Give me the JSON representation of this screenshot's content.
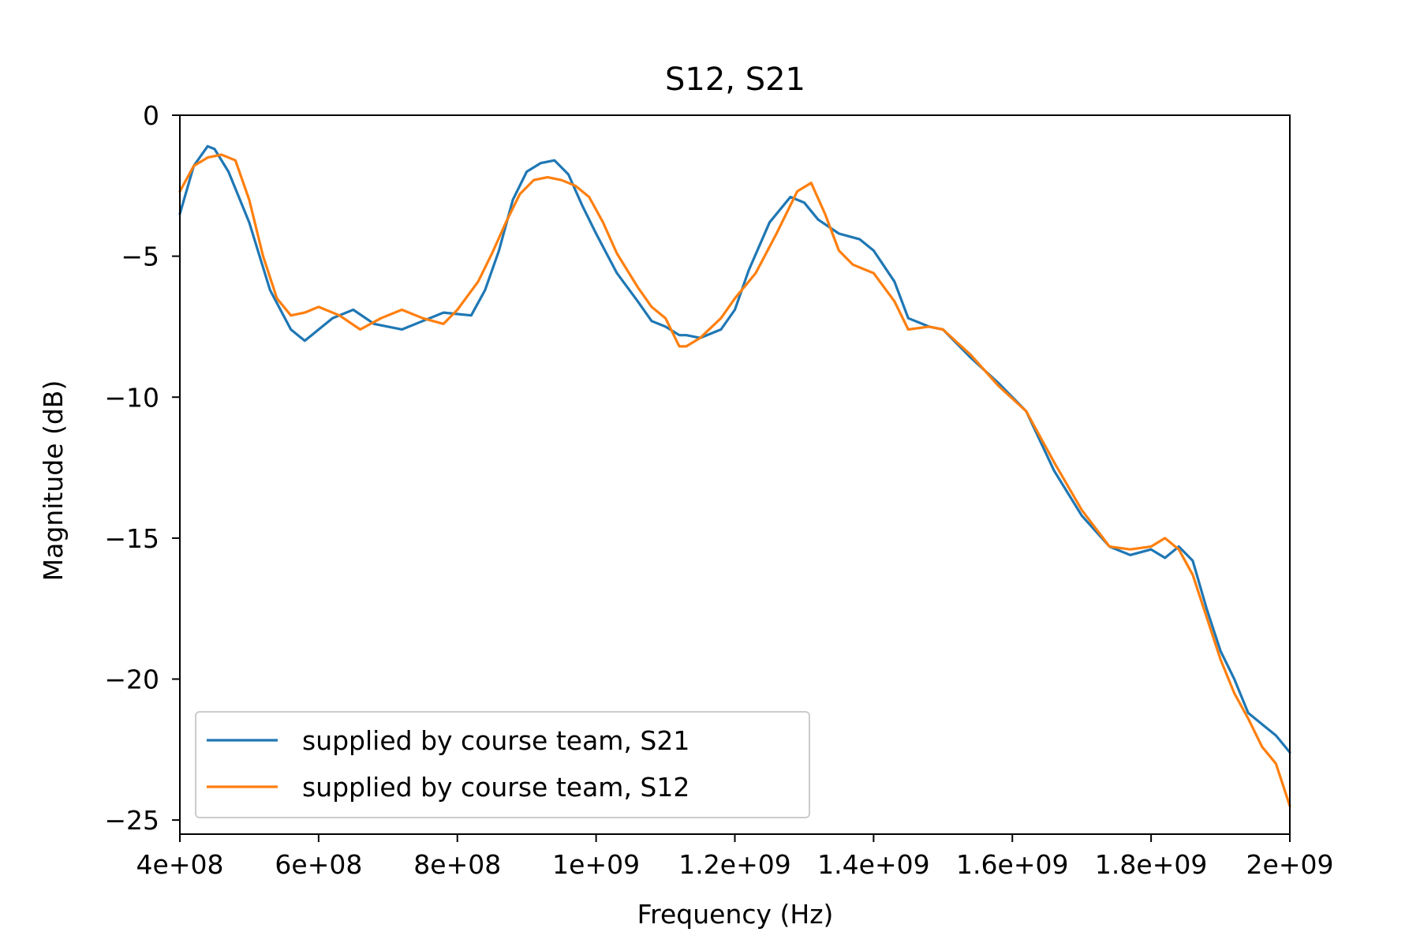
{
  "chart_data": {
    "type": "line",
    "title": "S12, S21",
    "xlabel": "Frequency (Hz)",
    "ylabel": "Magnitude (dB)",
    "xlim": [
      400000000,
      2000000000
    ],
    "ylim": [
      -25.5,
      0
    ],
    "x_ticks": [
      400000000,
      600000000,
      800000000,
      1000000000,
      1200000000,
      1400000000,
      1600000000,
      1800000000,
      2000000000
    ],
    "x_tick_labels": [
      "4e+08",
      "6e+08",
      "8e+08",
      "1e+09",
      "1.2e+09",
      "1.4e+09",
      "1.6e+09",
      "1.8e+09",
      "2e+09"
    ],
    "y_ticks": [
      0,
      -5,
      -10,
      -15,
      -20,
      -25
    ],
    "y_tick_labels": [
      "0",
      "−5",
      "−10",
      "−15",
      "−20",
      "−25"
    ],
    "grid": false,
    "legend_position": "lower-left",
    "series": [
      {
        "name": "supplied by course team, S21",
        "color": "#1f77b4",
        "x": [
          400000000,
          420000000,
          440000000,
          450000000,
          470000000,
          500000000,
          530000000,
          560000000,
          580000000,
          590000000,
          600000000,
          620000000,
          650000000,
          680000000,
          720000000,
          750000000,
          780000000,
          820000000,
          840000000,
          860000000,
          880000000,
          900000000,
          920000000,
          940000000,
          960000000,
          980000000,
          1000000000,
          1030000000,
          1060000000,
          1080000000,
          1100000000,
          1120000000,
          1130000000,
          1150000000,
          1180000000,
          1200000000,
          1220000000,
          1250000000,
          1280000000,
          1300000000,
          1320000000,
          1350000000,
          1380000000,
          1400000000,
          1430000000,
          1450000000,
          1480000000,
          1500000000,
          1540000000,
          1580000000,
          1620000000,
          1660000000,
          1700000000,
          1740000000,
          1770000000,
          1800000000,
          1820000000,
          1840000000,
          1860000000,
          1880000000,
          1900000000,
          1920000000,
          1940000000,
          1960000000,
          1980000000,
          2000000000
        ],
        "y": [
          -3.5,
          -1.8,
          -1.1,
          -1.2,
          -2.0,
          -3.8,
          -6.2,
          -7.6,
          -8.0,
          -7.8,
          -7.6,
          -7.2,
          -6.9,
          -7.4,
          -7.6,
          -7.3,
          -7.0,
          -7.1,
          -6.2,
          -4.8,
          -3.0,
          -2.0,
          -1.7,
          -1.6,
          -2.1,
          -3.2,
          -4.2,
          -5.6,
          -6.6,
          -7.3,
          -7.5,
          -7.8,
          -7.8,
          -7.9,
          -7.6,
          -6.9,
          -5.5,
          -3.8,
          -2.9,
          -3.1,
          -3.7,
          -4.2,
          -4.4,
          -4.8,
          -5.9,
          -7.2,
          -7.5,
          -7.6,
          -8.6,
          -9.5,
          -10.5,
          -12.6,
          -14.2,
          -15.3,
          -15.6,
          -15.4,
          -15.7,
          -15.3,
          -15.8,
          -17.5,
          -19.0,
          -20.0,
          -21.2,
          -21.6,
          -22.0,
          -22.6
        ]
      },
      {
        "name": "supplied by course team, S12",
        "color": "#ff7f0e",
        "x": [
          400000000,
          420000000,
          440000000,
          460000000,
          480000000,
          500000000,
          520000000,
          540000000,
          560000000,
          580000000,
          600000000,
          630000000,
          660000000,
          690000000,
          720000000,
          750000000,
          780000000,
          800000000,
          830000000,
          850000000,
          870000000,
          890000000,
          910000000,
          930000000,
          950000000,
          970000000,
          990000000,
          1010000000,
          1030000000,
          1060000000,
          1080000000,
          1100000000,
          1120000000,
          1130000000,
          1150000000,
          1180000000,
          1200000000,
          1230000000,
          1260000000,
          1290000000,
          1310000000,
          1330000000,
          1350000000,
          1370000000,
          1400000000,
          1430000000,
          1450000000,
          1480000000,
          1500000000,
          1540000000,
          1580000000,
          1620000000,
          1660000000,
          1700000000,
          1740000000,
          1770000000,
          1800000000,
          1820000000,
          1840000000,
          1860000000,
          1880000000,
          1900000000,
          1920000000,
          1940000000,
          1960000000,
          1980000000,
          2000000000
        ],
        "y": [
          -2.7,
          -1.8,
          -1.5,
          -1.4,
          -1.6,
          -3.0,
          -5.0,
          -6.5,
          -7.1,
          -7.0,
          -6.8,
          -7.1,
          -7.6,
          -7.2,
          -6.9,
          -7.2,
          -7.4,
          -6.9,
          -5.9,
          -4.9,
          -3.8,
          -2.8,
          -2.3,
          -2.2,
          -2.3,
          -2.5,
          -2.9,
          -3.8,
          -4.9,
          -6.1,
          -6.8,
          -7.2,
          -8.2,
          -8.2,
          -7.9,
          -7.2,
          -6.5,
          -5.6,
          -4.2,
          -2.7,
          -2.4,
          -3.5,
          -4.8,
          -5.3,
          -5.6,
          -6.6,
          -7.6,
          -7.5,
          -7.6,
          -8.5,
          -9.6,
          -10.5,
          -12.3,
          -14.0,
          -15.3,
          -15.4,
          -15.3,
          -15.0,
          -15.4,
          -16.3,
          -17.8,
          -19.3,
          -20.5,
          -21.4,
          -22.4,
          -23.0,
          -24.5
        ]
      }
    ]
  }
}
